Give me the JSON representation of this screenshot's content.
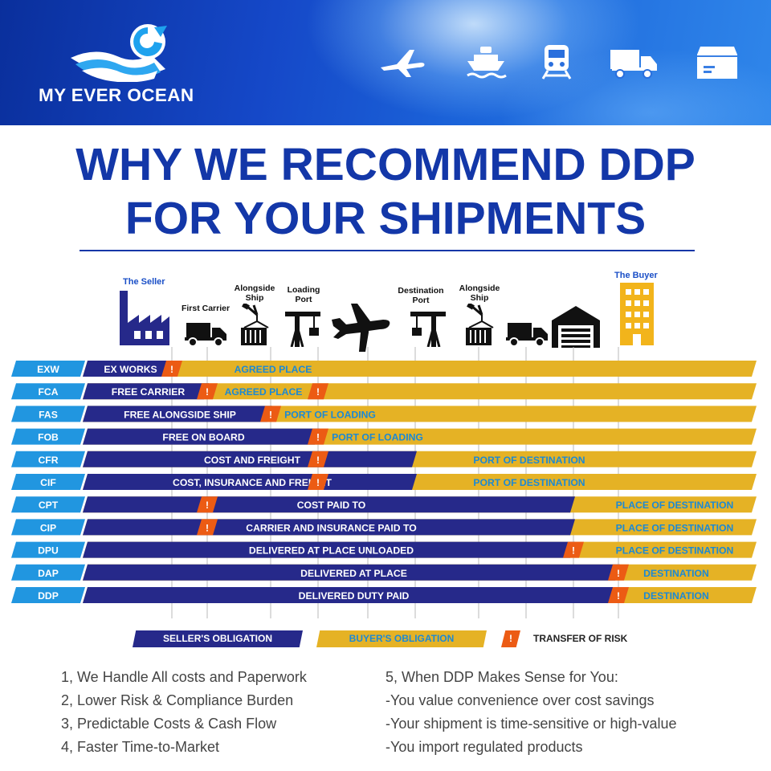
{
  "brand": {
    "name": "MY EVER OCEAN",
    "transport_icons": [
      "airplane-icon",
      "ship-icon",
      "train-icon",
      "truck-icon",
      "package-icon"
    ]
  },
  "title": {
    "line1": "WHY WE RECOMMEND DDP",
    "line2": "FOR YOUR SHIPMENTS"
  },
  "parties": {
    "seller": "The Seller",
    "buyer": "The Buyer"
  },
  "stages": [
    {
      "label": "",
      "icon": "factory-icon"
    },
    {
      "label": "First Carrier",
      "icon": "truck-icon"
    },
    {
      "label": "Alongside Ship",
      "icon": "crane-container-icon"
    },
    {
      "label": "Loading Port",
      "icon": "port-crane-icon"
    },
    {
      "label": "",
      "icon": "airplane-icon"
    },
    {
      "label": "Destination Port",
      "icon": "port-crane-icon"
    },
    {
      "label": "Alongside Ship",
      "icon": "crane-container-icon"
    },
    {
      "label": "",
      "icon": "truck-icon"
    },
    {
      "label": "",
      "icon": "warehouse-icon"
    },
    {
      "label": "",
      "icon": "building-icon"
    }
  ],
  "incoterms": [
    {
      "code": "EXW",
      "seller_text": "EX WORKS",
      "buyer_text": "AGREED PLACE",
      "risk_stage": 0
    },
    {
      "code": "FCA",
      "seller_text": "FREE CARRIER",
      "buyer_text": "AGREED PLACE",
      "risk_stage": 1,
      "second_risk_stage": 3
    },
    {
      "code": "FAS",
      "seller_text": "FREE ALONGSIDE SHIP",
      "buyer_text": "PORT OF LOADING",
      "risk_stage": 2
    },
    {
      "code": "FOB",
      "seller_text": "FREE ON BOARD",
      "buyer_text": "PORT OF LOADING",
      "risk_stage": 3
    },
    {
      "code": "CFR",
      "seller_text": "COST AND FREIGHT",
      "buyer_text": "PORT OF DESTINATION",
      "risk_stage": 3,
      "obligation_stage": 5
    },
    {
      "code": "CIF",
      "seller_text": "COST, INSURANCE AND FREIGHT",
      "buyer_text": "PORT OF DESTINATION",
      "risk_stage": 3,
      "obligation_stage": 5
    },
    {
      "code": "CPT",
      "seller_text": "COST PAID TO",
      "buyer_text": "PLACE OF DESTINATION",
      "risk_stage": 1,
      "obligation_stage": 8
    },
    {
      "code": "CIP",
      "seller_text": "CARRIER AND INSURANCE PAID TO",
      "buyer_text": "PLACE OF DESTINATION",
      "risk_stage": 1,
      "obligation_stage": 8
    },
    {
      "code": "DPU",
      "seller_text": "DELIVERED AT PLACE UNLOADED",
      "buyer_text": "PLACE OF DESTINATION",
      "risk_stage": 8
    },
    {
      "code": "DAP",
      "seller_text": "DELIVERED AT PLACE",
      "buyer_text": "DESTINATION",
      "risk_stage": 9
    },
    {
      "code": "DDP",
      "seller_text": "DELIVERED DUTY PAID",
      "buyer_text": "DESTINATION",
      "risk_stage": 9
    }
  ],
  "legend": {
    "seller": "SELLER'S OBLIGATION",
    "buyer": "BUYER'S OBLIGATION",
    "risk_symbol": "!",
    "risk": "TRANSFER OF RISK"
  },
  "colors": {
    "seller": "#26298a",
    "buyer": "#e5b225",
    "buyer_text": "#1c89d4",
    "code_tag": "#2196e0",
    "risk": "#ec5b14",
    "title": "#1337a8"
  },
  "points_left": [
    "1, We Handle All costs and Paperwork",
    "2, Lower Risk & Compliance Burden",
    "3, Predictable Costs & Cash Flow",
    "4, Faster Time-to-Market"
  ],
  "points_right": [
    "5, When DDP Makes Sense for You:",
    "-You value convenience over cost savings",
    "-Your shipment is time-sensitive or high-value",
    "-You import regulated products"
  ]
}
